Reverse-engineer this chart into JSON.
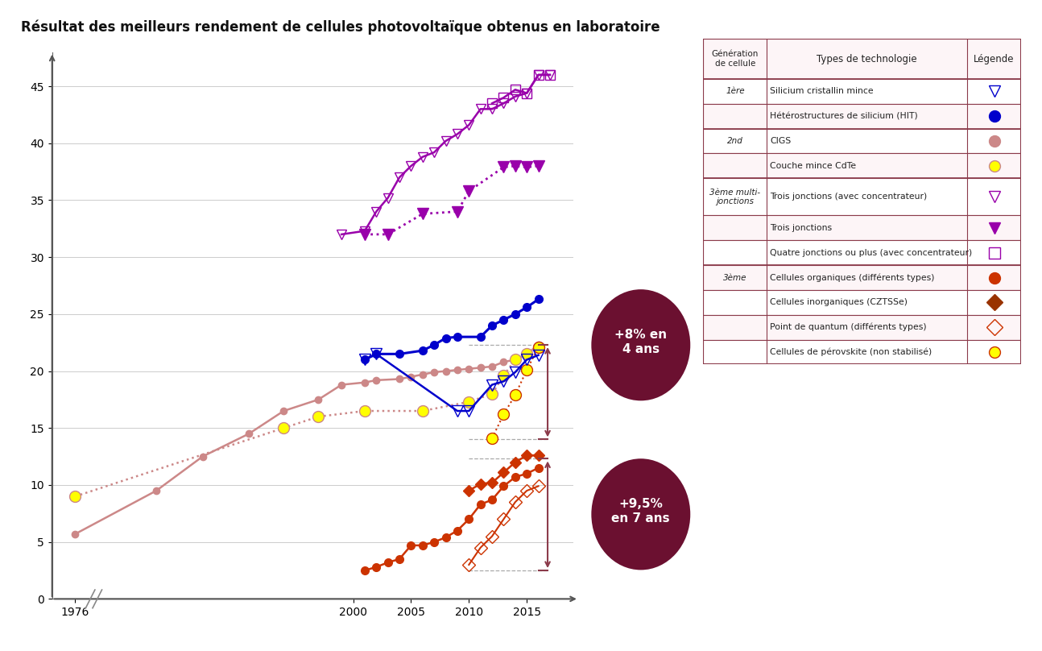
{
  "title": "Résultat des meilleurs rendement de cellules photovoltaïque obtenus en laboratoire",
  "title_fontsize": 12,
  "background_color": "#ffffff",
  "ylim": [
    0,
    48
  ],
  "xlim": [
    1974,
    2019
  ],
  "yticks": [
    0,
    5,
    10,
    15,
    20,
    25,
    30,
    35,
    40,
    45
  ],
  "xticks": [
    1976,
    2000,
    2005,
    2010,
    2015
  ],
  "series": {
    "trois_jonctions_concentrateur": {
      "color": "#9900aa",
      "linestyle": "solid",
      "markersize": 9,
      "linewidth": 1.8,
      "x": [
        1999,
        2001,
        2002,
        2003,
        2004,
        2005,
        2006,
        2007,
        2008,
        2009,
        2010,
        2011,
        2012,
        2013,
        2014,
        2015,
        2016,
        2017
      ],
      "y": [
        32.0,
        32.3,
        34.0,
        35.2,
        37.0,
        38.0,
        38.8,
        39.2,
        40.2,
        40.8,
        41.6,
        43.0,
        43.0,
        43.5,
        44.1,
        44.4,
        46.0,
        46.0
      ]
    },
    "trois_jonctions": {
      "color": "#9900aa",
      "linestyle": "dotted",
      "markersize": 10,
      "linewidth": 2.0,
      "x": [
        2001,
        2003,
        2006,
        2009,
        2010,
        2013,
        2014,
        2015,
        2016
      ],
      "y": [
        32.0,
        32.0,
        33.8,
        34.0,
        35.8,
        37.9,
        38.0,
        37.9,
        38.0
      ]
    },
    "quatre_jonctions_concentrateur": {
      "color": "#9900aa",
      "linestyle": "solid",
      "markersize": 8,
      "linewidth": 1.8,
      "x": [
        2012,
        2013,
        2014,
        2015,
        2016,
        2017
      ],
      "y": [
        43.5,
        44.0,
        44.7,
        44.4,
        46.0,
        46.0
      ]
    },
    "silicium_cristallin": {
      "color": "#0000cc",
      "linestyle": "solid",
      "markersize": 10,
      "linewidth": 1.8,
      "x": [
        2001,
        2002,
        2009,
        2010,
        2012,
        2013,
        2014,
        2015,
        2016
      ],
      "y": [
        21.0,
        21.5,
        16.5,
        16.5,
        18.8,
        19.1,
        19.9,
        21.0,
        21.4
      ]
    },
    "heterostructures_HIT": {
      "color": "#0000cc",
      "linestyle": "solid",
      "markersize": 7,
      "linewidth": 2.2,
      "x": [
        2001,
        2002,
        2004,
        2006,
        2007,
        2008,
        2009,
        2011,
        2012,
        2013,
        2014,
        2015,
        2016
      ],
      "y": [
        21.0,
        21.5,
        21.5,
        21.8,
        22.3,
        22.9,
        23.0,
        23.0,
        24.0,
        24.5,
        25.0,
        25.6,
        26.3
      ]
    },
    "CIGS": {
      "color": "#cc8888",
      "linestyle": "solid",
      "markersize": 6,
      "linewidth": 1.8,
      "x": [
        1976,
        1983,
        1987,
        1991,
        1994,
        1997,
        1999,
        2001,
        2002,
        2004,
        2005,
        2006,
        2007,
        2008,
        2009,
        2010,
        2011,
        2012,
        2013,
        2014,
        2015,
        2016
      ],
      "y": [
        5.7,
        9.5,
        12.5,
        14.5,
        16.5,
        17.5,
        18.8,
        19.0,
        19.2,
        19.3,
        19.5,
        19.7,
        19.9,
        20.0,
        20.1,
        20.2,
        20.3,
        20.4,
        20.8,
        21.0,
        21.5,
        22.3
      ]
    },
    "CdTe": {
      "color": "#cc8888",
      "linestyle": "dotted",
      "markersize": 10,
      "linewidth": 1.8,
      "x": [
        1976,
        1994,
        1997,
        2001,
        2006,
        2010,
        2012,
        2013,
        2014,
        2015,
        2016
      ],
      "y": [
        9.0,
        15.0,
        16.0,
        16.5,
        16.5,
        17.3,
        18.0,
        19.6,
        21.0,
        21.5,
        22.1
      ]
    },
    "cellules_organiques": {
      "color": "#cc3300",
      "linestyle": "solid",
      "markersize": 7,
      "linewidth": 1.8,
      "x": [
        2001,
        2002,
        2003,
        2004,
        2005,
        2006,
        2007,
        2008,
        2009,
        2010,
        2011,
        2012,
        2013,
        2014,
        2015,
        2016
      ],
      "y": [
        2.5,
        2.8,
        3.2,
        3.5,
        4.7,
        4.7,
        5.0,
        5.4,
        6.0,
        7.0,
        8.3,
        8.7,
        9.9,
        10.7,
        11.0,
        11.5
      ]
    },
    "cellules_inorganiques_CZTSSe": {
      "color": "#cc3300",
      "linestyle": "solid",
      "markersize": 7,
      "linewidth": 1.8,
      "x": [
        2010,
        2011,
        2012,
        2013,
        2014,
        2015,
        2016
      ],
      "y": [
        9.5,
        10.1,
        10.2,
        11.1,
        12.0,
        12.6,
        12.6
      ]
    },
    "quantum_dot": {
      "color": "#cc3300",
      "linestyle": "solid",
      "markersize": 8,
      "linewidth": 1.5,
      "x": [
        2010,
        2011,
        2012,
        2013,
        2014,
        2015,
        2016
      ],
      "y": [
        3.0,
        4.5,
        5.5,
        7.0,
        8.5,
        9.5,
        9.9
      ]
    },
    "perovskite": {
      "color": "#cc3300",
      "linestyle": "dotted",
      "markersize": 10,
      "linewidth": 1.5,
      "x": [
        2012,
        2013,
        2014,
        2015,
        2016
      ],
      "y": [
        14.1,
        16.2,
        17.9,
        20.1,
        22.1
      ]
    }
  },
  "annotation_8pct": "+8% en\n4 ans",
  "annotation_9pct": "+9,5%\nen 7 ans",
  "ellipse_color": "#6b1030",
  "ellipse_text_color": "#ffffff",
  "arrow_color": "#8b3a4a",
  "table_border_color": "#8b3a4a",
  "cell_data": [
    {
      "gen": "Génération\nde cellule",
      "tech": "Types de technologie",
      "is_header": true
    },
    {
      "gen": "1ère",
      "tech": "Silicium cristallin mince",
      "marker": "v",
      "mcolor": "#0000cc",
      "mfc": "none",
      "span_start": true
    },
    {
      "gen": "",
      "tech": "Hétérostructures de silicium (HIT)",
      "marker": "o",
      "mcolor": "#0000cc",
      "mfc": "#0000cc",
      "span_start": false
    },
    {
      "gen": "2nd",
      "tech": "CIGS",
      "marker": "o",
      "mcolor": "#cc8888",
      "mfc": "#cc8888",
      "span_start": true
    },
    {
      "gen": "",
      "tech": "Couche mince CdTe",
      "marker": "o",
      "mcolor": "#cc8888",
      "mfc": "#ffff00",
      "mec": "#cc8888",
      "span_start": false
    },
    {
      "gen": "3ème multi-\njonctions",
      "tech": "Trois jonctions (avec concentrateur)",
      "marker": "v",
      "mcolor": "#9900aa",
      "mfc": "none",
      "span_start": true
    },
    {
      "gen": "",
      "tech": "Trois jonctions",
      "marker": "v",
      "mcolor": "#9900aa",
      "mfc": "#9900aa",
      "span_start": false
    },
    {
      "gen": "",
      "tech": "Quatre jonctions ou plus (avec concentrateur)",
      "marker": "s",
      "mcolor": "#9900aa",
      "mfc": "none",
      "span_start": false
    },
    {
      "gen": "3ème",
      "tech": "Cellules organiques (différents types)",
      "marker": "o",
      "mcolor": "#cc3300",
      "mfc": "#cc3300",
      "span_start": true
    },
    {
      "gen": "",
      "tech": "Cellules inorganiques (CZTSSe)",
      "marker": "D",
      "mcolor": "#993300",
      "mfc": "#993300",
      "span_start": false
    },
    {
      "gen": "",
      "tech": "Point de quantum (différents types)",
      "marker": "D",
      "mcolor": "#cc3300",
      "mfc": "none",
      "mec": "#cc3300",
      "span_start": false
    },
    {
      "gen": "",
      "tech": "Cellules de pérovskite (non stabilisé)",
      "marker": "o",
      "mcolor": "#cc3300",
      "mfc": "#ffff00",
      "mec": "#cc3300",
      "span_start": false
    }
  ]
}
